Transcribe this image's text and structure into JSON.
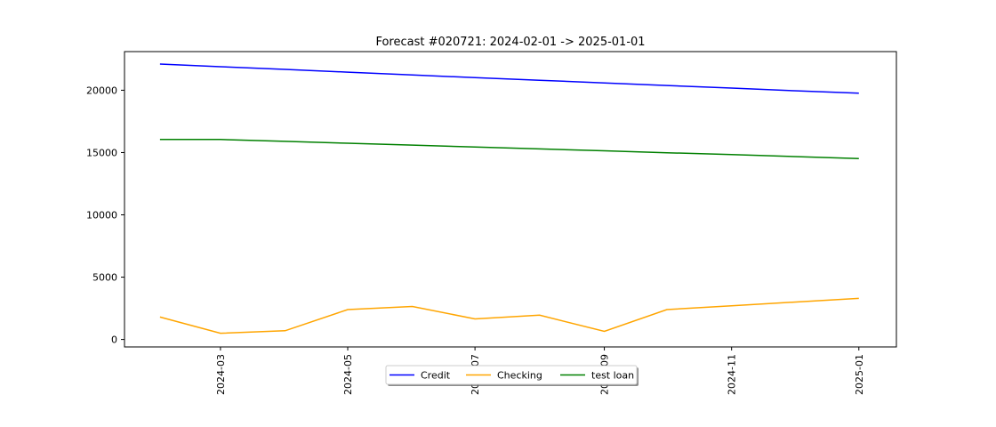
{
  "chart_data": {
    "type": "line",
    "title": "Forecast #020721: 2024-02-01 -> 2025-01-01",
    "xlabel": "",
    "ylabel": "",
    "x": [
      "2024-02-01",
      "2024-03-01",
      "2024-04-01",
      "2024-05-01",
      "2024-06-01",
      "2024-07-01",
      "2024-08-01",
      "2024-09-01",
      "2024-10-01",
      "2024-11-01",
      "2024-12-01",
      "2025-01-01"
    ],
    "xticks": [
      "2024-03",
      "2024-05",
      "2024-07",
      "2024-09",
      "2024-11",
      "2025-01"
    ],
    "yticks": [
      0,
      5000,
      10000,
      15000,
      20000
    ],
    "ylim": [
      -600,
      23100
    ],
    "xlim": [
      "2024-01-15",
      "2025-01-19"
    ],
    "grid": false,
    "legend_placement": "bottom-center",
    "series": [
      {
        "name": "Credit",
        "color": "#0000ff",
        "values": [
          22100,
          21890,
          21670,
          21450,
          21230,
          21010,
          20800,
          20590,
          20380,
          20170,
          19960,
          19760
        ]
      },
      {
        "name": "Checking",
        "color": "#ffa500",
        "values": [
          1800,
          500,
          700,
          2400,
          2650,
          1650,
          1950,
          650,
          2400,
          2700,
          3000,
          3300
        ]
      },
      {
        "name": "test loan",
        "color": "#008000",
        "values": [
          16050,
          16050,
          15900,
          15750,
          15600,
          15440,
          15290,
          15140,
          14980,
          14830,
          14680,
          14520
        ]
      }
    ]
  }
}
